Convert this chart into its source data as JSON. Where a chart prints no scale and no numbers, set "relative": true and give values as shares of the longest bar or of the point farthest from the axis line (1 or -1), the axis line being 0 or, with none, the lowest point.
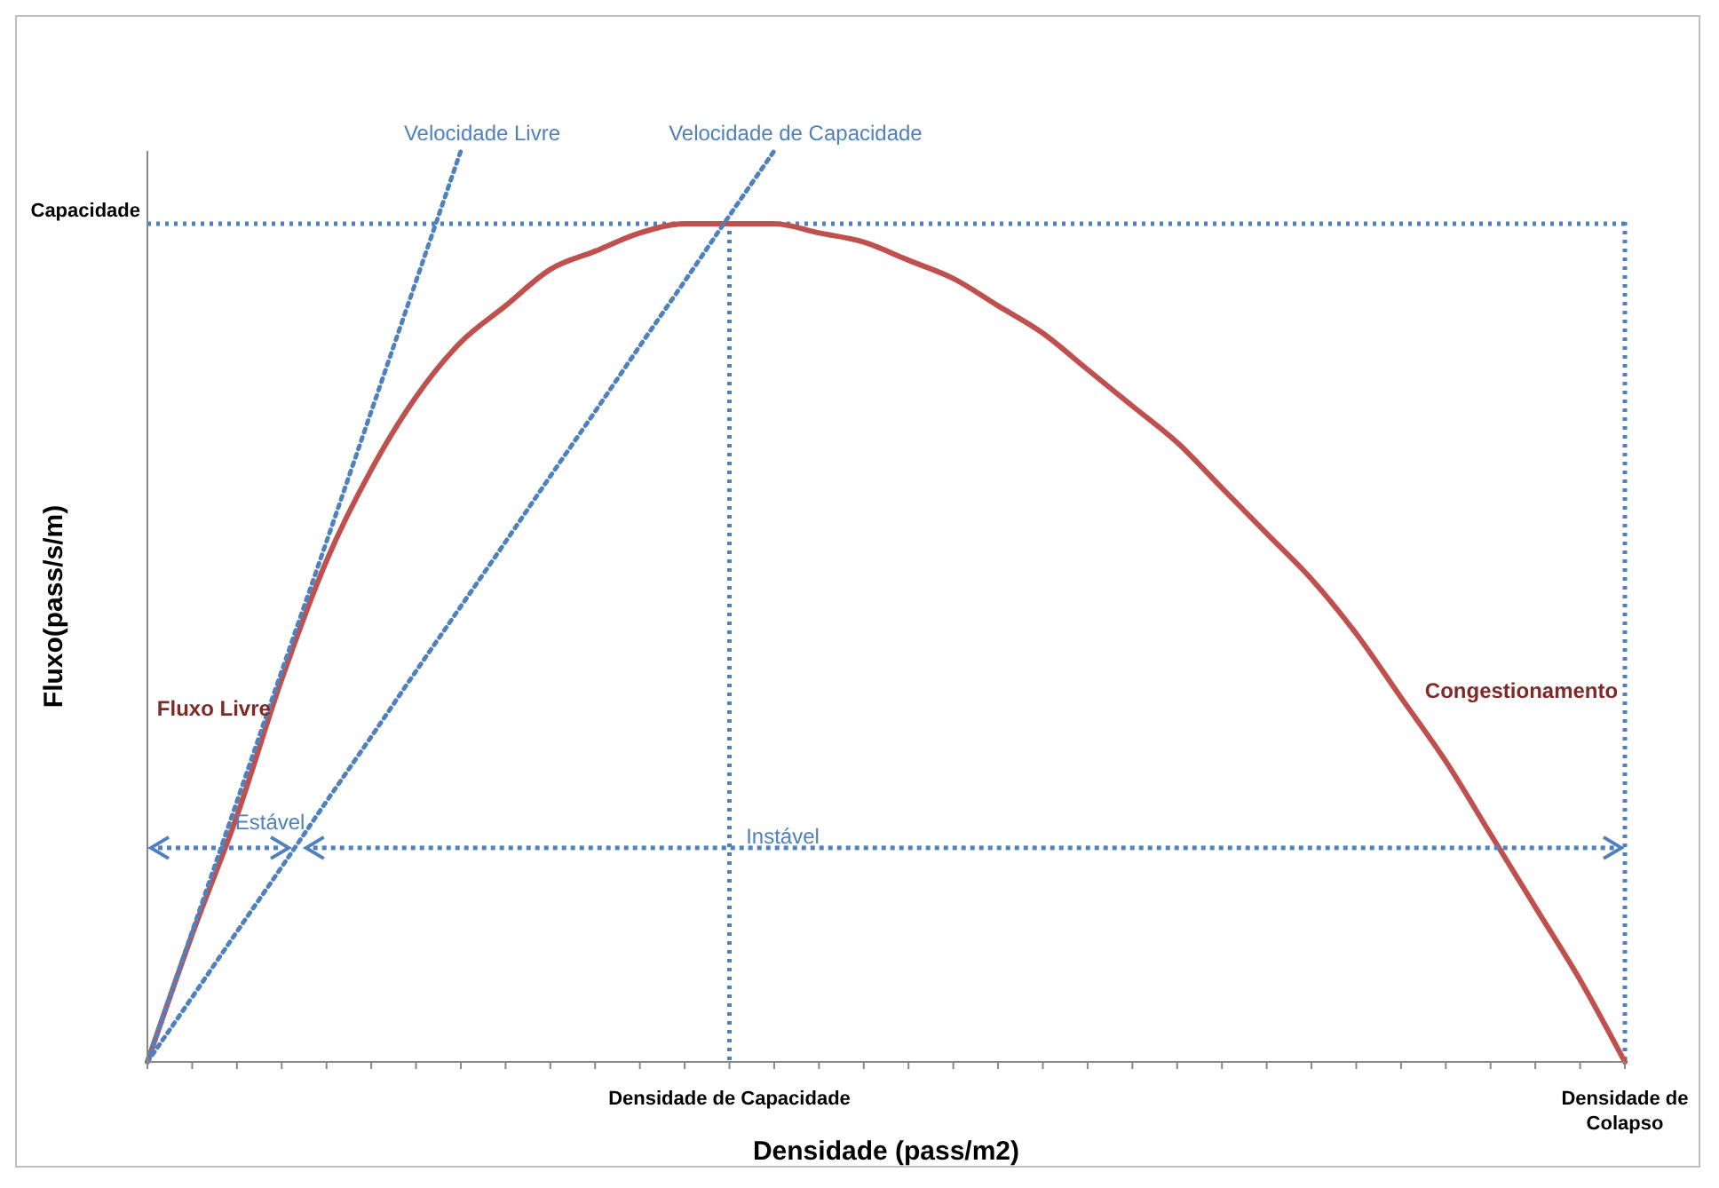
{
  "chart_data": {
    "type": "line",
    "relative": true,
    "xlabel": "Densidade (pass/m2)",
    "ylabel": "Fluxo(pass/s/m)",
    "categories": [
      null,
      null,
      null,
      null,
      null,
      null,
      null,
      null,
      null,
      null,
      null,
      null,
      null,
      "Densidade de Capacidade",
      null,
      null,
      null,
      null,
      null,
      null,
      null,
      null,
      null,
      null,
      null,
      null,
      null,
      null,
      null,
      null,
      null,
      null,
      null,
      "Densidade de Colapso"
    ],
    "series": [
      {
        "color": "#c0504d",
        "line_style": "solid",
        "values": [
          0,
          0.14,
          0.27,
          0.42,
          0.55,
          0.65,
          0.73,
          0.79,
          0.83,
          0.87,
          0.89,
          0.91,
          0.92,
          0.92,
          0.92,
          0.91,
          0.9,
          0.88,
          0.86,
          0.83,
          0.8,
          0.76,
          0.72,
          0.68,
          0.63,
          0.58,
          0.53,
          0.47,
          0.4,
          0.33,
          0.25,
          0.17,
          0.09,
          0
        ]
      },
      {
        "name": "Velocidade Livre",
        "color": "#4f81bd",
        "line_style": "dotted",
        "values": [
          0,
          0.143,
          0.286,
          0.429,
          0.571,
          0.714,
          0.857,
          1,
          null,
          null,
          null,
          null,
          null,
          null,
          null,
          null,
          null,
          null,
          null,
          null,
          null,
          null,
          null,
          null,
          null,
          null,
          null,
          null,
          null,
          null,
          null,
          null,
          null,
          null
        ]
      },
      {
        "name": "Velocidade de Capacidade",
        "color": "#4f81bd",
        "line_style": "dotted",
        "values": [
          0,
          0.071,
          0.143,
          0.214,
          0.286,
          0.357,
          0.429,
          0.5,
          0.571,
          0.643,
          0.714,
          0.786,
          0.857,
          0.929,
          1,
          null,
          null,
          null,
          null,
          null,
          null,
          null,
          null,
          null,
          null,
          null,
          null,
          null,
          null,
          null,
          null,
          null,
          null,
          null
        ]
      }
    ],
    "ref_lines": [
      {
        "axis": "y",
        "value": 0.92,
        "label": "Capacidade",
        "color": "#4f81bd",
        "line_style": "dotted"
      },
      {
        "axis": "x",
        "value": "Densidade de Capacidade",
        "color": "#4f81bd",
        "line_style": "dotted"
      },
      {
        "axis": "x",
        "value": "Densidade de Colapso",
        "color": "#4f81bd",
        "line_style": "dotted"
      }
    ],
    "annotations": [
      "Fluxo Livre",
      "Congestionamento",
      "Estável",
      "Instável"
    ],
    "grid": false,
    "legend": false,
    "marker": "none"
  }
}
